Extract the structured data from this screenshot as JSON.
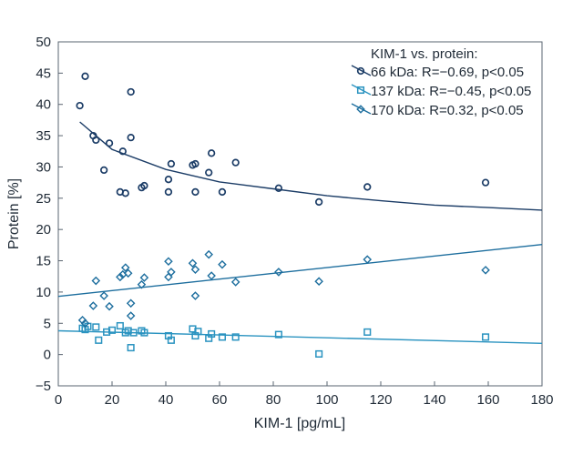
{
  "chart_data": {
    "type": "scatter",
    "title": "",
    "xlabel": "KIM-1 [pg/mL]",
    "ylabel": "Protein [%]",
    "xlim": [
      0,
      180
    ],
    "ylim": [
      -5,
      50
    ],
    "xticks": [
      "0",
      "20",
      "40",
      "60",
      "80",
      "100",
      "120",
      "140",
      "160",
      "180"
    ],
    "yticks": [
      "−5",
      "0",
      "5",
      "10",
      "15",
      "20",
      "25",
      "30",
      "35",
      "40",
      "45",
      "50"
    ],
    "legend": {
      "title": "KIM-1 vs. protein:",
      "position": "top-right"
    },
    "series": [
      {
        "name": "66 kDa: R=−0.69, p<0.05",
        "marker": "circle",
        "color": "#1b3c66",
        "fit": "power",
        "fit_points": [
          [
            8,
            37.2
          ],
          [
            20,
            32.8
          ],
          [
            40,
            29.6
          ],
          [
            60,
            27.6
          ],
          [
            80,
            26.5
          ],
          [
            100,
            25.4
          ],
          [
            120,
            24.6
          ],
          [
            140,
            23.9
          ],
          [
            160,
            23.5
          ],
          [
            180,
            23.1
          ]
        ],
        "points": [
          [
            8,
            39.8
          ],
          [
            10,
            44.5
          ],
          [
            13,
            35.0
          ],
          [
            14,
            34.3
          ],
          [
            17,
            29.5
          ],
          [
            19,
            33.8
          ],
          [
            23,
            26.0
          ],
          [
            24,
            32.5
          ],
          [
            25,
            25.8
          ],
          [
            27,
            42.0
          ],
          [
            27,
            34.7
          ],
          [
            31,
            26.7
          ],
          [
            32,
            27.0
          ],
          [
            41,
            26.0
          ],
          [
            41,
            28.0
          ],
          [
            42,
            30.5
          ],
          [
            50,
            30.3
          ],
          [
            51,
            30.5
          ],
          [
            51,
            26.0
          ],
          [
            56,
            29.1
          ],
          [
            57,
            32.2
          ],
          [
            61,
            26.0
          ],
          [
            66,
            30.7
          ],
          [
            82,
            26.6
          ],
          [
            97,
            24.4
          ],
          [
            115,
            26.8
          ],
          [
            159,
            27.5
          ]
        ]
      },
      {
        "name": "137 kDa: R=−0.45, p<0.05",
        "marker": "square",
        "color": "#2a93c0",
        "fit": "linear",
        "fit_points": [
          [
            0,
            3.8
          ],
          [
            180,
            1.8
          ]
        ],
        "points": [
          [
            9,
            4.2
          ],
          [
            10,
            4.0
          ],
          [
            11,
            4.5
          ],
          [
            14,
            4.4
          ],
          [
            15,
            2.3
          ],
          [
            18,
            3.6
          ],
          [
            20,
            3.9
          ],
          [
            23,
            4.6
          ],
          [
            25,
            3.5
          ],
          [
            26,
            3.8
          ],
          [
            27,
            1.1
          ],
          [
            28,
            3.5
          ],
          [
            31,
            3.8
          ],
          [
            32,
            3.5
          ],
          [
            41,
            3.0
          ],
          [
            42,
            2.3
          ],
          [
            50,
            4.1
          ],
          [
            51,
            3.0
          ],
          [
            52,
            3.7
          ],
          [
            56,
            2.6
          ],
          [
            57,
            3.3
          ],
          [
            61,
            2.8
          ],
          [
            66,
            2.8
          ],
          [
            82,
            3.2
          ],
          [
            97,
            0.1
          ],
          [
            115,
            3.6
          ],
          [
            159,
            2.8
          ]
        ]
      },
      {
        "name": "170 kDa: R=0.32, p<0.05",
        "marker": "diamond",
        "color": "#1d6e9e",
        "fit": "linear",
        "fit_points": [
          [
            0,
            9.3
          ],
          [
            180,
            17.6
          ]
        ],
        "points": [
          [
            9,
            5.5
          ],
          [
            10,
            5.0
          ],
          [
            13,
            7.8
          ],
          [
            14,
            11.8
          ],
          [
            17,
            9.4
          ],
          [
            19,
            7.7
          ],
          [
            23,
            12.4
          ],
          [
            24,
            12.8
          ],
          [
            25,
            13.9
          ],
          [
            26,
            13.0
          ],
          [
            27,
            8.2
          ],
          [
            27,
            6.2
          ],
          [
            31,
            11.2
          ],
          [
            32,
            12.3
          ],
          [
            41,
            12.4
          ],
          [
            41,
            14.9
          ],
          [
            42,
            13.2
          ],
          [
            50,
            14.6
          ],
          [
            51,
            9.4
          ],
          [
            51,
            13.6
          ],
          [
            56,
            16.0
          ],
          [
            57,
            12.6
          ],
          [
            61,
            14.4
          ],
          [
            66,
            11.6
          ],
          [
            82,
            13.2
          ],
          [
            97,
            11.7
          ],
          [
            115,
            15.2
          ],
          [
            159,
            13.5
          ]
        ]
      }
    ]
  }
}
